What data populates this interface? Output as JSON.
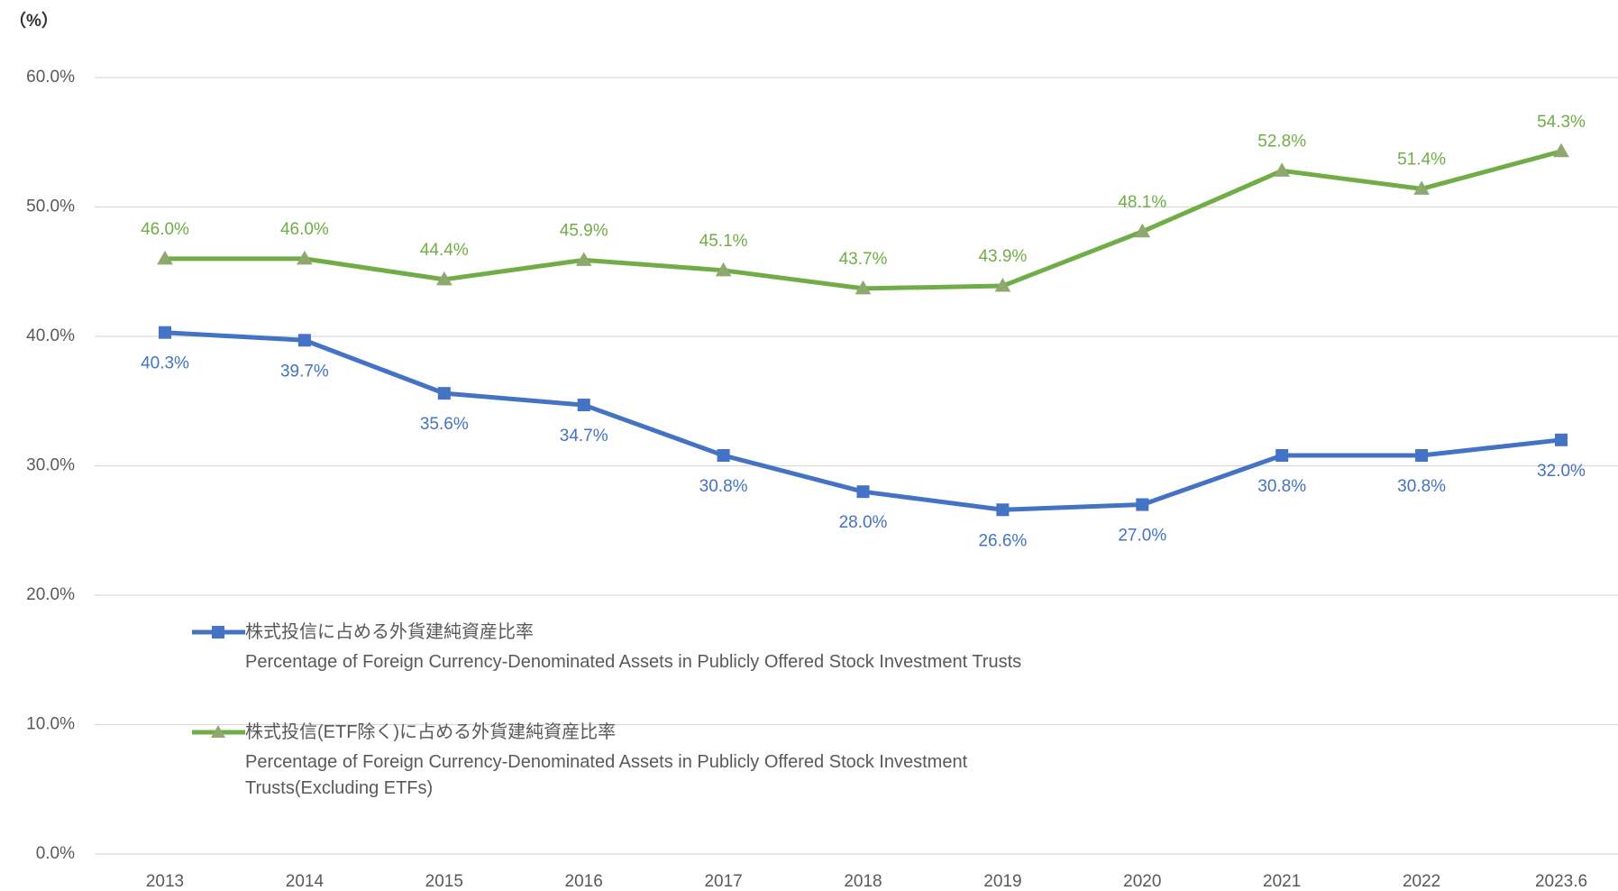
{
  "chart_data": {
    "type": "line",
    "y_label": "（%）",
    "categories": [
      "2013",
      "2014",
      "2015",
      "2016",
      "2017",
      "2018",
      "2019",
      "2020",
      "2021",
      "2022",
      "2023.6"
    ],
    "series": [
      {
        "name": "株式投信に占める外貨建純資産比率",
        "name_en": "Percentage of Foreign Currency-Denominated Assets in Publicly Offered Stock Investment Trusts",
        "color": "#4472c4",
        "marker": "square",
        "label_position": "below",
        "values": [
          40.3,
          39.7,
          35.6,
          34.7,
          30.8,
          28.0,
          26.6,
          27.0,
          30.8,
          30.8,
          32.0
        ],
        "value_labels": [
          "40.3%",
          "39.7%",
          "35.6%",
          "34.7%",
          "30.8%",
          "28.0%",
          "26.6%",
          "27.0%",
          "30.8%",
          "30.8%",
          "32.0%"
        ]
      },
      {
        "name": "株式投信(ETF除く)に占める外貨建純資産比率",
        "name_en": "Percentage of Foreign Currency-Denominated Assets in Publicly Offered Stock Investment Trusts(Excluding ETFs)",
        "color": "#70ad47",
        "marker": "triangle",
        "label_position": "above",
        "values": [
          46.0,
          46.0,
          44.4,
          45.9,
          45.1,
          43.7,
          43.9,
          48.1,
          52.8,
          51.4,
          54.3
        ],
        "value_labels": [
          "46.0%",
          "46.0%",
          "44.4%",
          "45.9%",
          "45.1%",
          "43.7%",
          "43.9%",
          "48.1%",
          "52.8%",
          "51.4%",
          "54.3%"
        ]
      }
    ],
    "ylim": [
      0,
      60
    ],
    "yticks": [
      {
        "value": 0,
        "label": "0.0%"
      },
      {
        "value": 10,
        "label": "10.0%"
      },
      {
        "value": 20,
        "label": "20.0%"
      },
      {
        "value": 30,
        "label": "30.0%"
      },
      {
        "value": 40,
        "label": "40.0%"
      },
      {
        "value": 50,
        "label": "50.0%"
      },
      {
        "value": 60,
        "label": "60.0%"
      }
    ],
    "grid": true
  }
}
